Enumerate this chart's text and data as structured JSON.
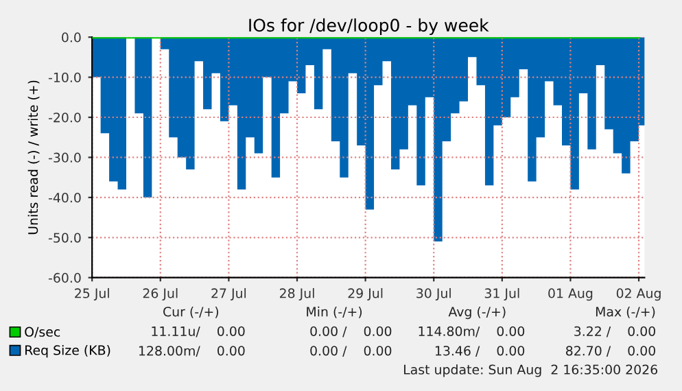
{
  "chart_data": {
    "type": "area",
    "title": "IOs for /dev/loop0 - by week",
    "ylabel": "Units read (-) / write (+)",
    "x": [
      "2026-07-25T00:00",
      "2026-07-25T03:00",
      "2026-07-25T06:00",
      "2026-07-25T09:00",
      "2026-07-25T12:00",
      "2026-07-25T15:00",
      "2026-07-25T18:00",
      "2026-07-25T21:00",
      "2026-07-26T00:00",
      "2026-07-26T03:00",
      "2026-07-26T06:00",
      "2026-07-26T09:00",
      "2026-07-26T12:00",
      "2026-07-26T15:00",
      "2026-07-26T18:00",
      "2026-07-26T21:00",
      "2026-07-27T00:00",
      "2026-07-27T03:00",
      "2026-07-27T06:00",
      "2026-07-27T09:00",
      "2026-07-27T12:00",
      "2026-07-27T15:00",
      "2026-07-27T18:00",
      "2026-07-27T21:00",
      "2026-07-28T00:00",
      "2026-07-28T03:00",
      "2026-07-28T06:00",
      "2026-07-28T09:00",
      "2026-07-28T12:00",
      "2026-07-28T15:00",
      "2026-07-28T18:00",
      "2026-07-28T21:00",
      "2026-07-29T00:00",
      "2026-07-29T03:00",
      "2026-07-29T06:00",
      "2026-07-29T09:00",
      "2026-07-29T12:00",
      "2026-07-29T15:00",
      "2026-07-29T18:00",
      "2026-07-29T21:00",
      "2026-07-30T00:00",
      "2026-07-30T03:00",
      "2026-07-30T06:00",
      "2026-07-30T09:00",
      "2026-07-30T12:00",
      "2026-07-30T15:00",
      "2026-07-30T18:00",
      "2026-07-30T21:00",
      "2026-07-31T00:00",
      "2026-07-31T03:00",
      "2026-07-31T06:00",
      "2026-07-31T09:00",
      "2026-07-31T12:00",
      "2026-07-31T15:00",
      "2026-07-31T18:00",
      "2026-07-31T21:00",
      "2026-08-01T00:00",
      "2026-08-01T03:00",
      "2026-08-01T06:00",
      "2026-08-01T09:00",
      "2026-08-01T12:00",
      "2026-08-01T15:00",
      "2026-08-01T18:00",
      "2026-08-01T21:00",
      "2026-08-02T00:00"
    ],
    "series": [
      {
        "name": "O/sec",
        "type": "line",
        "color": "#00cc00",
        "x": [
          "2026-07-25T00:00",
          "2026-08-02T00:00"
        ],
        "values": [
          0,
          0
        ]
      },
      {
        "name": "Req Size (KB)",
        "color": "#0066b3",
        "values": [
          -10,
          -24,
          -36,
          -38,
          0,
          -19,
          -40,
          0,
          -3,
          -25,
          -30,
          -33,
          -6,
          -18,
          -9,
          -21,
          -17,
          -38,
          -25,
          -29,
          -10,
          -35,
          -19,
          -11,
          -14,
          -7,
          -18,
          -3,
          -26,
          -35,
          -9,
          -27,
          -43,
          -12,
          -6,
          -33,
          -28,
          -17,
          -37,
          -15,
          -51,
          -26,
          -19,
          -16,
          -5,
          -12,
          -37,
          -22,
          -20,
          -15,
          -8,
          -36,
          -25,
          -11,
          -17,
          -27,
          -38,
          -14,
          -28,
          -7,
          -23,
          -29,
          -34,
          -26,
          -22
        ]
      }
    ],
    "xlim": [
      "2026-07-25T00:00",
      "2026-08-02T02:00"
    ],
    "xticks": [
      {
        "value": "2026-07-25",
        "label": "25 Jul"
      },
      {
        "value": "2026-07-26",
        "label": "26 Jul"
      },
      {
        "value": "2026-07-27",
        "label": "27 Jul"
      },
      {
        "value": "2026-07-28",
        "label": "28 Jul"
      },
      {
        "value": "2026-07-29",
        "label": "29 Jul"
      },
      {
        "value": "2026-07-30",
        "label": "30 Jul"
      },
      {
        "value": "2026-07-31",
        "label": "31 Jul"
      },
      {
        "value": "2026-08-01",
        "label": "01 Aug"
      },
      {
        "value": "2026-08-02",
        "label": "02 Aug"
      }
    ],
    "ylim": [
      -60,
      0
    ],
    "yticks": [
      {
        "value": -60,
        "label": "-60.0"
      },
      {
        "value": -50,
        "label": "-50.0"
      },
      {
        "value": -40,
        "label": "-40.0"
      },
      {
        "value": -30,
        "label": "-30.0"
      },
      {
        "value": -20,
        "label": "-20.0"
      },
      {
        "value": -10,
        "label": "-10.0"
      },
      {
        "value": 0,
        "label": "0.0"
      }
    ],
    "grid": true,
    "legend": "bottom left",
    "annotations": [
      "Cur (-/+)",
      "Min (-/+)",
      "Avg (-/+)",
      "Max (-/+)",
      "11.11u/    0.00",
      "0.00 /    0.00",
      "114.80m/    0.00",
      "3.22 /    0.00",
      "128.00m/    0.00",
      "0.00 /    0.00",
      "13.46 /    0.00",
      "82.70 /    0.00",
      "Last update: Sun Aug  2 16:35:00 2026"
    ]
  }
}
